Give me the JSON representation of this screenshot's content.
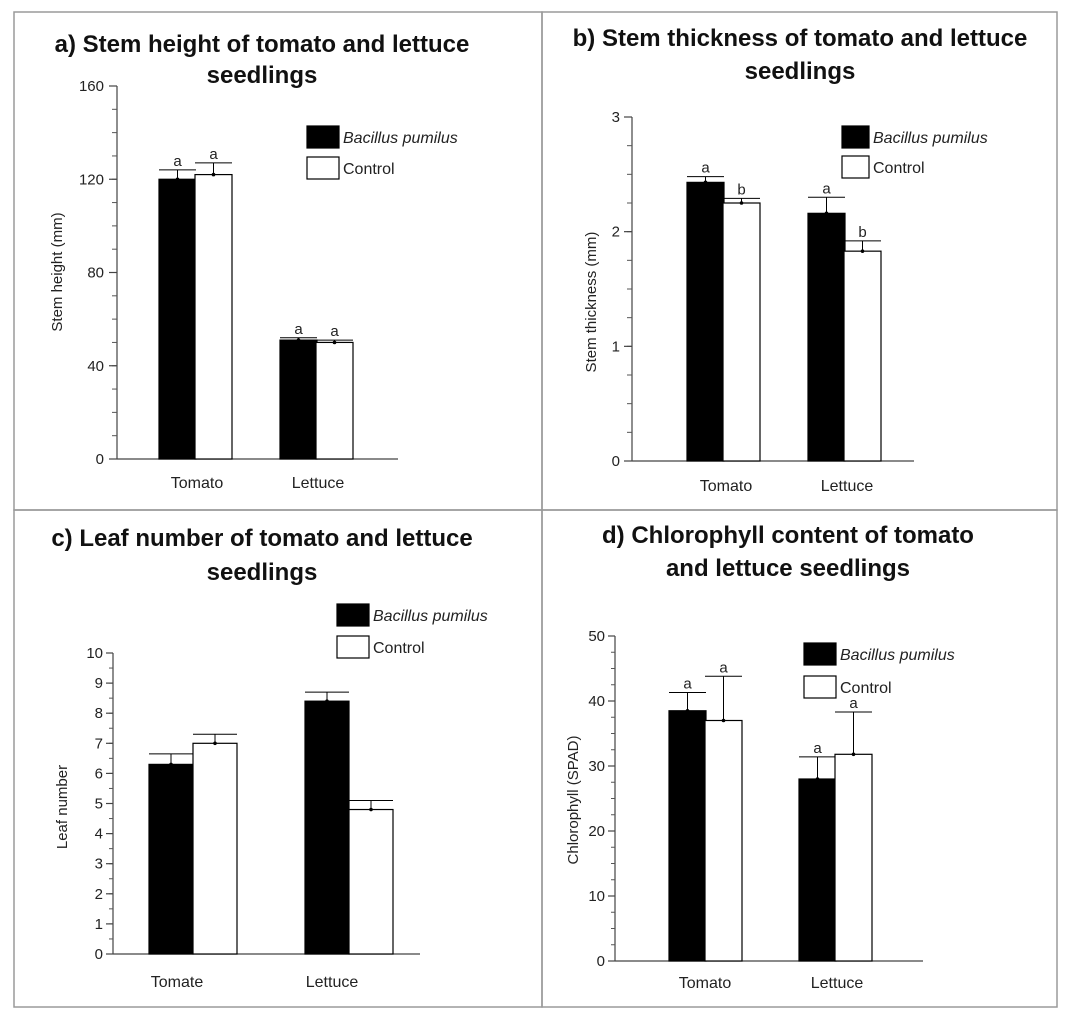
{
  "chart_data": [
    {
      "type": "bar",
      "panel": "a",
      "title": "a) Stem height of tomato and lettuce seedlings",
      "title_lines": [
        "a) Stem height of tomato and lettuce",
        "seedlings"
      ],
      "xlabel": "",
      "ylabel": "Stem height (mm)",
      "ylim": [
        0,
        160
      ],
      "yticks": [
        0,
        40,
        80,
        120,
        160
      ],
      "minor_step": 10,
      "categories": [
        "Tomato",
        "Lettuce"
      ],
      "series": [
        {
          "name": "Bacillus pumilus",
          "italic": true,
          "color": "#000000",
          "values": [
            120,
            51
          ],
          "errors": [
            4,
            1
          ],
          "letters": [
            "a",
            "a"
          ]
        },
        {
          "name": "Control",
          "italic": false,
          "color": "#ffffff",
          "values": [
            122,
            50
          ],
          "errors": [
            5,
            1
          ],
          "letters": [
            "a",
            "a"
          ]
        }
      ],
      "legend": "top-right"
    },
    {
      "type": "bar",
      "panel": "b",
      "title": "b) Stem thickness of tomato and lettuce seedlings",
      "title_lines": [
        "b) Stem thickness of tomato and lettuce",
        "seedlings"
      ],
      "xlabel": "",
      "ylabel": "Stem thickness (mm)",
      "ylim": [
        0,
        3
      ],
      "yticks": [
        0,
        1,
        2,
        3
      ],
      "minor_step": 0.25,
      "categories": [
        "Tomato",
        "Lettuce"
      ],
      "series": [
        {
          "name": "Bacillus pumilus",
          "italic": true,
          "color": "#000000",
          "values": [
            2.43,
            2.16
          ],
          "errors": [
            0.05,
            0.14
          ],
          "letters": [
            "a",
            "a"
          ]
        },
        {
          "name": "Control",
          "italic": false,
          "color": "#ffffff",
          "values": [
            2.25,
            1.83
          ],
          "errors": [
            0.04,
            0.09
          ],
          "letters": [
            "b",
            "b"
          ]
        }
      ],
      "legend": "top-right"
    },
    {
      "type": "bar",
      "panel": "c",
      "title": "c) Leaf number of tomato and lettuce seedlings",
      "title_lines": [
        "c) Leaf number of tomato and lettuce",
        "seedlings"
      ],
      "xlabel": "",
      "ylabel": "Leaf number",
      "ylim": [
        0,
        10
      ],
      "yticks": [
        0,
        1,
        2,
        3,
        4,
        5,
        6,
        7,
        8,
        9,
        10
      ],
      "minor_step": 0.5,
      "categories": [
        "Tomate",
        "Lettuce"
      ],
      "series": [
        {
          "name": "Bacillus pumilus",
          "italic": true,
          "color": "#000000",
          "values": [
            6.3,
            8.4
          ],
          "errors": [
            0.35,
            0.3
          ],
          "letters": [
            "",
            ""
          ]
        },
        {
          "name": "Control",
          "italic": false,
          "color": "#ffffff",
          "values": [
            7.0,
            4.8
          ],
          "errors": [
            0.3,
            0.3
          ],
          "letters": [
            "",
            ""
          ]
        }
      ],
      "legend": "top-right"
    },
    {
      "type": "bar",
      "panel": "d",
      "title": "d) Chlorophyll content of tomato and lettuce seedlings",
      "title_lines": [
        "d) Chlorophyll content of tomato",
        "and lettuce seedlings"
      ],
      "xlabel": "",
      "ylabel": "Chlorophyll (SPAD)",
      "ylim": [
        0,
        50
      ],
      "yticks": [
        0,
        10,
        20,
        30,
        40,
        50
      ],
      "minor_step": 2.5,
      "categories": [
        "Tomato",
        "Lettuce"
      ],
      "series": [
        {
          "name": "Bacillus pumilus",
          "italic": true,
          "color": "#000000",
          "values": [
            38.5,
            28.0
          ],
          "errors": [
            2.8,
            3.4
          ],
          "letters": [
            "a",
            "a"
          ]
        },
        {
          "name": "Control",
          "italic": false,
          "color": "#ffffff",
          "values": [
            37.0,
            31.8
          ],
          "errors": [
            6.8,
            6.5
          ],
          "letters": [
            "a",
            "a"
          ]
        }
      ],
      "legend": "top-right"
    }
  ]
}
